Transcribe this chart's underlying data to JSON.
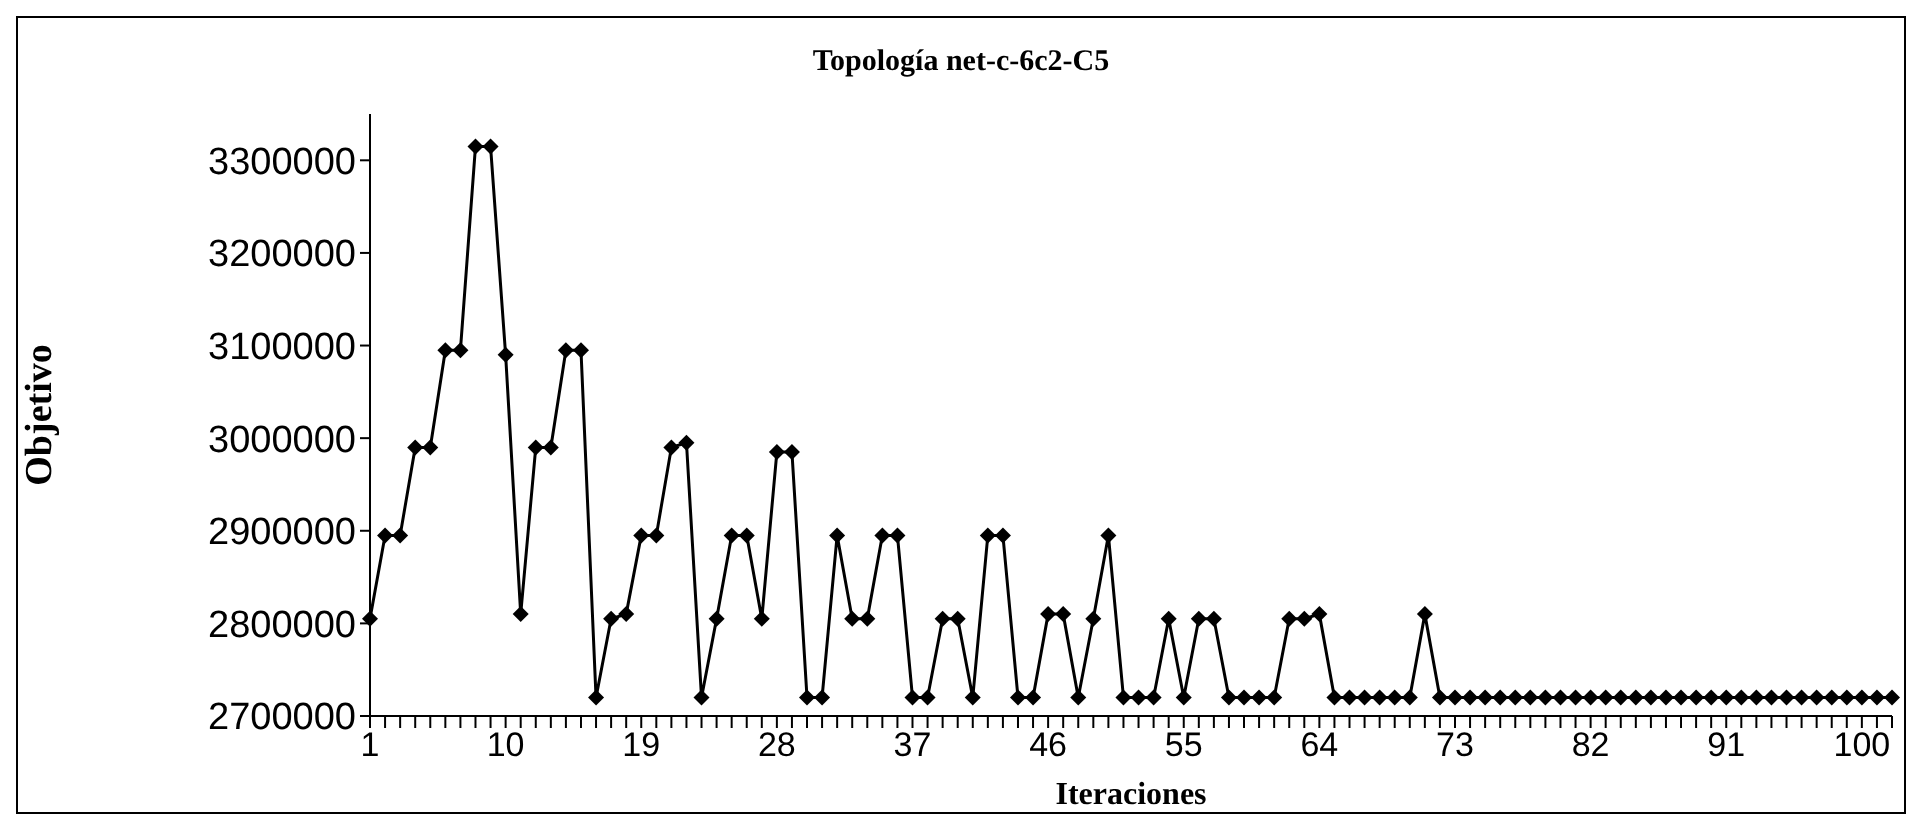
{
  "chart_data": {
    "type": "line",
    "title": "Topología net-c-6c2-C5",
    "xlabel": "Iteraciones",
    "ylabel": "Objetivo",
    "categories": [
      "1",
      null,
      null,
      null,
      null,
      null,
      null,
      null,
      null,
      "10",
      null,
      null,
      null,
      null,
      null,
      null,
      null,
      null,
      "19",
      null,
      null,
      null,
      null,
      null,
      null,
      null,
      null,
      "28",
      null,
      null,
      null,
      null,
      null,
      null,
      null,
      null,
      "37",
      null,
      null,
      null,
      null,
      null,
      null,
      null,
      null,
      "46",
      null,
      null,
      null,
      null,
      null,
      null,
      null,
      null,
      "55",
      null,
      null,
      null,
      null,
      null,
      null,
      null,
      null,
      "64",
      null,
      null,
      null,
      null,
      null,
      null,
      null,
      null,
      "73",
      null,
      null,
      null,
      null,
      null,
      null,
      null,
      null,
      "82",
      null,
      null,
      null,
      null,
      null,
      null,
      null,
      null,
      "91",
      null,
      null,
      null,
      null,
      null,
      null,
      null,
      null,
      "100",
      null,
      null
    ],
    "series": [
      {
        "color": "#000000",
        "values": [
          2805000,
          2895000,
          2895000,
          2990000,
          2990000,
          3095000,
          3095000,
          3315000,
          3315000,
          3090000,
          2810000,
          2990000,
          2990000,
          3095000,
          3095000,
          2720000,
          2805000,
          2810000,
          2895000,
          2895000,
          2990000,
          2995000,
          2720000,
          2805000,
          2895000,
          2895000,
          2805000,
          2985000,
          2985000,
          2720000,
          2720000,
          2895000,
          2805000,
          2805000,
          2895000,
          2895000,
          2720000,
          2720000,
          2805000,
          2805000,
          2720000,
          2895000,
          2895000,
          2720000,
          2720000,
          2810000,
          2810000,
          2720000,
          2805000,
          2895000,
          2720000,
          2720000,
          2720000,
          2805000,
          2720000,
          2805000,
          2805000,
          2720000,
          2720000,
          2720000,
          2720000,
          2805000,
          2805000,
          2810000,
          2720000,
          2720000,
          2720000,
          2720000,
          2720000,
          2720000,
          2810000,
          2720000,
          2720000,
          2720000,
          2720000,
          2720000,
          2720000,
          2720000,
          2720000,
          2720000,
          2720000,
          2720000,
          2720000,
          2720000,
          2720000,
          2720000,
          2720000,
          2720000,
          2720000,
          2720000,
          2720000,
          2720000,
          2720000,
          2720000,
          2720000,
          2720000,
          2720000,
          2720000,
          2720000,
          2720000,
          2720000,
          2720000
        ]
      }
    ],
    "ylim": [
      2700000,
      3350000
    ],
    "yticks": [
      2700000,
      2800000,
      2900000,
      3000000,
      3100000,
      3200000,
      3300000
    ],
    "marker": "diamond",
    "line_style": "solid",
    "grid": false,
    "legend": false
  }
}
